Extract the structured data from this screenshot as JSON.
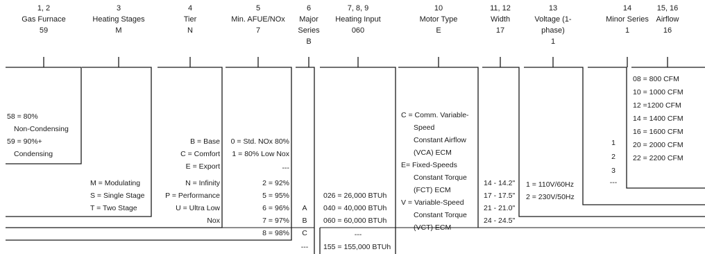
{
  "headers": [
    {
      "pos": "1, 2",
      "title": "Gas Furnace",
      "value": "59"
    },
    {
      "pos": "3",
      "title": "Heating Stages",
      "value": "M"
    },
    {
      "pos": "4",
      "title": "Tier",
      "value": "N"
    },
    {
      "pos": "5",
      "title": "Min. AFUE/NOx",
      "value": "7"
    },
    {
      "pos": "6",
      "title": "Major Series",
      "value": "B"
    },
    {
      "pos": "7, 8, 9",
      "title": "Heating Input",
      "value": "060"
    },
    {
      "pos": "10",
      "title": "Motor Type",
      "value": "E"
    },
    {
      "pos": "11, 12",
      "title": "Width",
      "value": "17"
    },
    {
      "pos": "13",
      "title": "Voltage (1-phase)",
      "value": "1"
    },
    {
      "pos": "14",
      "title": "Minor Series",
      "value": "1"
    },
    {
      "pos": "15, 16",
      "title": "Airflow",
      "value": "16"
    }
  ],
  "gas_furnace": [
    "58 = 80%",
    "Non-Condensing",
    "59 = 90%+",
    "Condensing"
  ],
  "heating_stages": [
    "M = Modulating",
    "S = Single Stage",
    "T = Two Stage"
  ],
  "tier": [
    "B = Base",
    "C = Comfort",
    "E = Export",
    "N = Infinity",
    "P = Performance",
    "U = Ultra Low",
    "Nox"
  ],
  "afue": [
    "0 = Std. NOx 80%",
    "1 = 80% Low Nox",
    "---",
    "2 = 92%",
    "5 = 95%",
    "6 = 96%",
    "7 = 97%",
    "8 = 98%"
  ],
  "major_series": [
    "A",
    "B",
    "C",
    "---"
  ],
  "heating_input": [
    "026 = 26,000 BTUh",
    "040 = 40,000 BTUh",
    "060 = 60,000 BTUh",
    "---",
    "155 = 155,000 BTUh"
  ],
  "motor_type": [
    "C = Comm. Variable-",
    "Speed",
    "Constant Airflow",
    "(VCA) ECM",
    "E= Fixed-Speeds",
    "Constant Torque",
    "(FCT) ECM",
    "V = Variable-Speed",
    "Constant Torque",
    "(VCT) ECM"
  ],
  "width": [
    "14 - 14.2\"",
    "17 - 17.5\"",
    "21 - 21.0\"",
    "24 - 24.5\""
  ],
  "voltage": [
    "1 = 110V/60Hz",
    "2 = 230V/50Hz"
  ],
  "minor_series": [
    "1",
    "2",
    "3",
    "---"
  ],
  "airflow": [
    "08 = 800 CFM",
    "10 = 1000 CFM",
    "12 =1200 CFM",
    "14 = 1400 CFM",
    "16 = 1600 CFM",
    "20 = 2000 CFM",
    "22 = 2200 CFM"
  ]
}
